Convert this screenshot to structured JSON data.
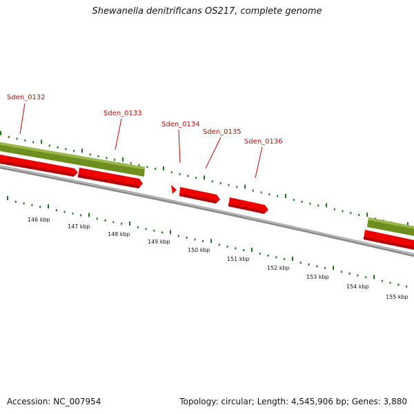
{
  "title": "Shewanella denitrificans OS217, complete genome",
  "accession": "Accession: NC_007954",
  "topology": "Topology: circular; Length: 4,545,906 bp; Genes: 3,880",
  "colors": {
    "gene_label": "#cc0000",
    "gene_arrow": "#ee0000",
    "gene_arrow_dark": "#b00000",
    "green_band": "#6e8f1f",
    "green_band_light": "#9ab84a",
    "backbone": "#777777",
    "tick_green": "#1a7a1a"
  },
  "genes": [
    {
      "name": "Sden_0132"
    },
    {
      "name": "Sden_0133"
    },
    {
      "name": "Sden_0134"
    },
    {
      "name": "Sden_0135"
    },
    {
      "name": "Sden_0136"
    }
  ],
  "tick_labels": [
    "146 kbp",
    "147 kbp",
    "148 kbp",
    "149 kbp",
    "150 kbp",
    "151 kbp",
    "152 kbp",
    "153 kbp",
    "154 kbp",
    "155 kbp"
  ]
}
